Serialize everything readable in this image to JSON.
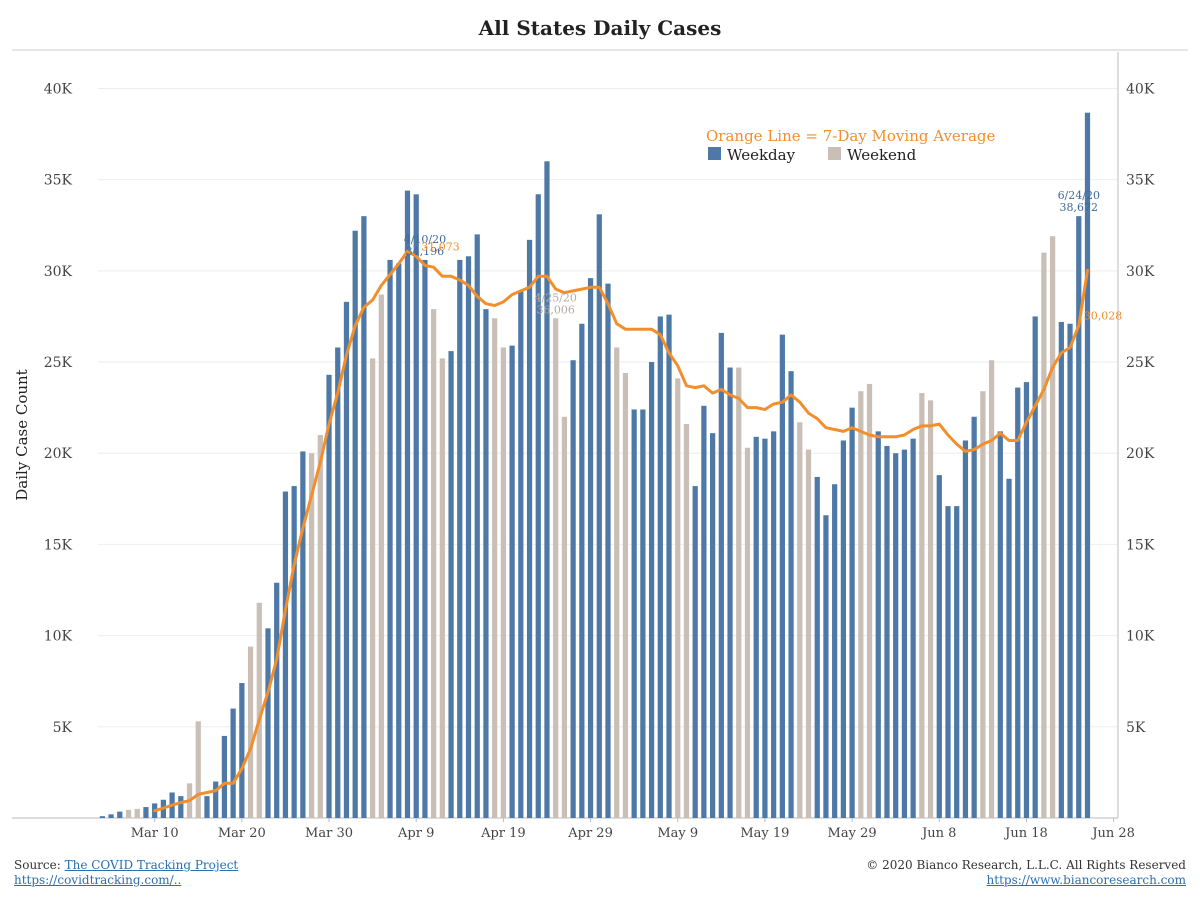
{
  "chart_data": {
    "type": "bar",
    "title": "All States Daily Cases",
    "ylabel": "Daily Case Count",
    "ylim": [
      0,
      42000
    ],
    "yticks": [
      5000,
      10000,
      15000,
      20000,
      25000,
      30000,
      35000,
      40000
    ],
    "ytick_labels": [
      "5K",
      "10K",
      "15K",
      "20K",
      "25K",
      "30K",
      "35K",
      "40K"
    ],
    "x_start": "2020-03-04",
    "x_end": "2020-06-29",
    "xtick_dates": [
      "2020-03-10",
      "2020-03-20",
      "2020-03-30",
      "2020-04-09",
      "2020-04-19",
      "2020-04-29",
      "2020-05-09",
      "2020-05-19",
      "2020-05-29",
      "2020-06-08",
      "2020-06-18",
      "2020-06-28"
    ],
    "xtick_labels": [
      "Mar 10",
      "Mar 20",
      "Mar 30",
      "Apr 9",
      "Apr 19",
      "Apr 29",
      "May 9",
      "May 19",
      "May 29",
      "Jun 8",
      "Jun 18",
      "Jun 28"
    ],
    "first_bar_date": "2020-03-04",
    "daily_cases": [
      100,
      200,
      350,
      450,
      500,
      600,
      800,
      1000,
      1400,
      1200,
      1900,
      5300,
      1200,
      2000,
      4500,
      6000,
      7400,
      9400,
      11800,
      10400,
      12900,
      17900,
      18200,
      20100,
      20000,
      21000,
      24300,
      25800,
      28300,
      32200,
      33000,
      25200,
      28700,
      30600,
      30400,
      34400,
      34196,
      30600,
      27900,
      25200,
      25600,
      30600,
      30800,
      32000,
      27900,
      27400,
      25800,
      25900,
      28900,
      31700,
      34200,
      36006,
      27400,
      22000,
      25100,
      27100,
      29600,
      33100,
      29300,
      25800,
      24400,
      22400,
      22400,
      25000,
      27500,
      27600,
      24100,
      21600,
      18200,
      22600,
      21100,
      26600,
      24700,
      24700,
      20300,
      20900,
      20800,
      21200,
      26500,
      24500,
      21700,
      20200,
      18700,
      16600,
      18300,
      20700,
      22500,
      23400,
      23800,
      21200,
      20400,
      20000,
      20200,
      20800,
      23300,
      22900,
      18800,
      17100,
      17100,
      20700,
      22000,
      23400,
      25100,
      21200,
      18600,
      23600,
      23900,
      27500,
      31000,
      31900,
      27200,
      27100,
      33000,
      38672
    ],
    "moving_average": [
      null,
      null,
      null,
      null,
      null,
      null,
      400,
      550,
      700,
      850,
      950,
      1300,
      1400,
      1500,
      1900,
      1900,
      2700,
      3800,
      5400,
      6900,
      8700,
      11400,
      13900,
      15900,
      17700,
      19500,
      21600,
      23300,
      25400,
      27000,
      28000,
      28400,
      29200,
      29800,
      30400,
      31073,
      30800,
      30300,
      30200,
      29700,
      29700,
      29500,
      29200,
      28600,
      28200,
      28100,
      28300,
      28700,
      28900,
      29100,
      29700,
      29700,
      29000,
      28800,
      28900,
      29000,
      29100,
      29100,
      28200,
      27100,
      26800,
      26800,
      26800,
      26800,
      26500,
      25500,
      24800,
      23700,
      23600,
      23700,
      23300,
      23500,
      23200,
      23000,
      22500,
      22500,
      22400,
      22700,
      22800,
      23200,
      22800,
      22200,
      21900,
      21400,
      21300,
      21200,
      21400,
      21200,
      21000,
      20900,
      20900,
      20900,
      21000,
      21300,
      21500,
      21500,
      21600,
      21000,
      20500,
      20100,
      20200,
      20500,
      20700,
      21100,
      20700,
      20700,
      21700,
      22600,
      23500,
      24700,
      25500,
      25800,
      27000,
      30028
    ],
    "legend": {
      "note": "Orange Line = 7-Day Moving Average",
      "weekday": "Weekday",
      "weekend": "Weekend"
    },
    "annotations": [
      {
        "date": "2020-04-10",
        "label_date": "4/10/20",
        "label_value": "34,196",
        "kind": "weekday"
      },
      {
        "date": "2020-04-25",
        "label_date": "4/25/20",
        "label_value": "36,006",
        "kind": "weekend"
      },
      {
        "date": "2020-06-24",
        "label_date": "6/24/20",
        "label_value": "38,672",
        "kind": "weekday"
      }
    ],
    "ma_annotations": [
      {
        "date": "2020-04-09",
        "label": "31,073"
      },
      {
        "date": "2020-06-24",
        "label": "30,028"
      }
    ],
    "colors": {
      "weekday": "#4e79a7",
      "weekend": "#c9bfb6",
      "moving_average": "#f28e2b",
      "grid": "#eeeeee",
      "axis": "#bbbbbb"
    },
    "grid": true,
    "legend_position": "top-right"
  },
  "footer": {
    "source_prefix": "Source: ",
    "source_link": "The COVID Tracking Project",
    "source_url_text": "https://covidtracking.com/..",
    "copyright": "© 2020 Bianco Research, L.L.C. All Rights Reserved",
    "website": "https://www.biancoresearch.com"
  }
}
